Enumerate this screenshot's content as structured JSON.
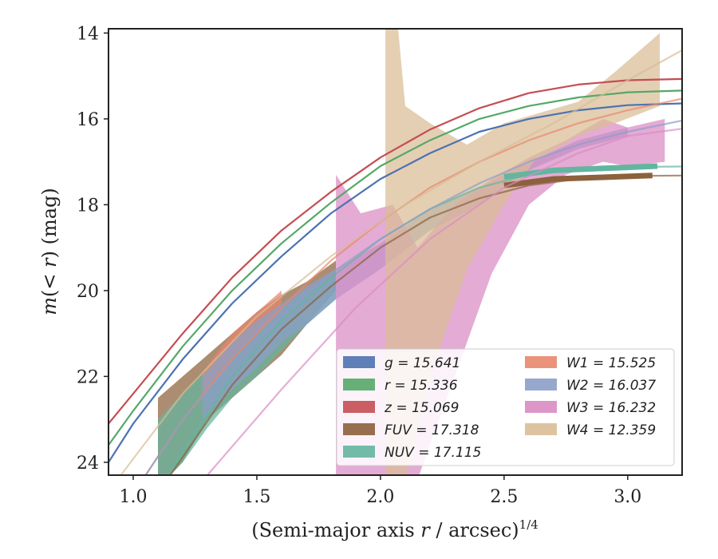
{
  "chart_data": {
    "type": "line",
    "xlabel": "(Semi-major axis r / arcsec)",
    "xlabel_exponent": "1/4",
    "ylabel": "m(< r) (mag)",
    "xlim": [
      0.9,
      3.22
    ],
    "ylim": [
      24.3,
      13.9
    ],
    "y_inverted": true,
    "grid": false,
    "legend_placement": "lower-right",
    "legend_columns": 2,
    "xticks": [
      "1.0",
      "1.5",
      "2.0",
      "2.5",
      "3.0"
    ],
    "yticks": [
      "14",
      "16",
      "18",
      "20",
      "22",
      "24"
    ],
    "series": [
      {
        "name": "g",
        "label": "g = 15.641",
        "color": "#4c72b0",
        "model": [
          [
            0.9,
            24.0
          ],
          [
            1.0,
            23.1
          ],
          [
            1.2,
            21.6
          ],
          [
            1.4,
            20.3
          ],
          [
            1.6,
            19.2
          ],
          [
            1.8,
            18.2
          ],
          [
            2.0,
            17.4
          ],
          [
            2.2,
            16.8
          ],
          [
            2.4,
            16.3
          ],
          [
            2.6,
            16.0
          ],
          [
            2.8,
            15.8
          ],
          [
            3.0,
            15.68
          ],
          [
            3.22,
            15.64
          ]
        ]
      },
      {
        "name": "r",
        "label": "r = 15.336",
        "color": "#55a868",
        "model": [
          [
            0.9,
            23.6
          ],
          [
            1.0,
            22.8
          ],
          [
            1.2,
            21.3
          ],
          [
            1.4,
            20.0
          ],
          [
            1.6,
            18.9
          ],
          [
            1.8,
            17.95
          ],
          [
            2.0,
            17.1
          ],
          [
            2.2,
            16.5
          ],
          [
            2.4,
            16.0
          ],
          [
            2.6,
            15.7
          ],
          [
            2.8,
            15.5
          ],
          [
            3.0,
            15.38
          ],
          [
            3.22,
            15.34
          ]
        ]
      },
      {
        "name": "z",
        "label": "z = 15.069",
        "color": "#c44e52",
        "model": [
          [
            0.9,
            23.1
          ],
          [
            1.0,
            22.4
          ],
          [
            1.2,
            21.0
          ],
          [
            1.4,
            19.7
          ],
          [
            1.6,
            18.6
          ],
          [
            1.8,
            17.7
          ],
          [
            2.0,
            16.9
          ],
          [
            2.2,
            16.25
          ],
          [
            2.4,
            15.75
          ],
          [
            2.6,
            15.4
          ],
          [
            2.8,
            15.2
          ],
          [
            3.0,
            15.1
          ],
          [
            3.22,
            15.07
          ]
        ]
      },
      {
        "name": "FUV",
        "label": "FUV = 17.318",
        "color": "#8c613c",
        "band": [
          [
            1.1,
            22.5,
            24.6
          ],
          [
            1.2,
            22.0,
            24.0
          ],
          [
            1.3,
            21.5,
            23.0
          ],
          [
            1.4,
            21.0,
            22.5
          ],
          [
            1.5,
            20.5,
            22.0
          ],
          [
            1.6,
            20.1,
            21.5
          ],
          [
            1.7,
            19.8,
            20.8
          ],
          [
            1.82,
            19.3,
            20.0
          ]
        ],
        "model": [
          [
            1.15,
            24.3
          ],
          [
            1.4,
            22.2
          ],
          [
            1.6,
            20.9
          ],
          [
            1.8,
            19.9
          ],
          [
            2.0,
            19.0
          ],
          [
            2.2,
            18.3
          ],
          [
            2.4,
            17.85
          ],
          [
            2.6,
            17.55
          ],
          [
            2.8,
            17.4
          ],
          [
            3.0,
            17.33
          ],
          [
            3.22,
            17.32
          ]
        ],
        "data_line": [
          [
            2.5,
            17.55
          ],
          [
            2.7,
            17.4
          ],
          [
            3.1,
            17.32
          ]
        ]
      },
      {
        "name": "NUV",
        "label": "NUV = 17.115",
        "color": "#64b5a0",
        "band": [
          [
            1.1,
            23.0,
            24.6
          ],
          [
            1.2,
            22.4,
            24.0
          ],
          [
            1.3,
            21.8,
            23.2
          ],
          [
            1.4,
            21.3,
            22.5
          ],
          [
            1.5,
            20.8,
            22.0
          ],
          [
            1.6,
            20.4,
            21.4
          ],
          [
            1.7,
            20.0,
            20.8
          ],
          [
            1.82,
            19.6,
            20.2
          ]
        ],
        "model": [
          [
            1.15,
            24.2
          ],
          [
            1.4,
            22.0
          ],
          [
            1.6,
            20.7
          ],
          [
            1.8,
            19.7
          ],
          [
            2.0,
            18.8
          ],
          [
            2.2,
            18.1
          ],
          [
            2.4,
            17.6
          ],
          [
            2.6,
            17.3
          ],
          [
            2.8,
            17.17
          ],
          [
            3.0,
            17.12
          ],
          [
            3.22,
            17.11
          ]
        ],
        "data_line": [
          [
            2.5,
            17.35
          ],
          [
            2.7,
            17.2
          ],
          [
            3.12,
            17.1
          ]
        ]
      },
      {
        "name": "W1",
        "label": "W1 = 15.525",
        "color": "#e8876b",
        "band": [
          [
            1.28,
            21.9,
            22.5
          ],
          [
            1.4,
            21.0,
            21.6
          ],
          [
            1.5,
            20.5,
            21.0
          ],
          [
            1.6,
            20.0,
            20.5
          ]
        ],
        "model": [
          [
            1.05,
            24.3
          ],
          [
            1.2,
            23.0
          ],
          [
            1.4,
            21.6
          ],
          [
            1.6,
            20.4
          ],
          [
            1.8,
            19.3
          ],
          [
            2.0,
            18.4
          ],
          [
            2.2,
            17.6
          ],
          [
            2.4,
            17.0
          ],
          [
            2.6,
            16.5
          ],
          [
            2.8,
            16.1
          ],
          [
            3.0,
            15.8
          ],
          [
            3.22,
            15.53
          ]
        ]
      },
      {
        "name": "W2",
        "label": "W2 = 16.037",
        "color": "#8c9ec9",
        "band": [
          [
            1.28,
            22.0,
            23.0
          ],
          [
            1.4,
            21.2,
            22.3
          ],
          [
            1.5,
            20.7,
            21.8
          ],
          [
            1.6,
            20.3,
            21.2
          ],
          [
            1.7,
            19.9,
            20.8
          ],
          [
            1.82,
            19.5,
            20.2
          ],
          [
            2.0,
            18.9,
            19.5
          ],
          [
            2.2,
            18.1,
            18.6
          ],
          [
            2.4,
            17.6,
            18.0
          ],
          [
            2.6,
            17.0,
            17.2
          ],
          [
            2.8,
            16.5,
            16.7
          ],
          [
            3.0,
            16.2,
            16.4
          ]
        ],
        "model": [
          [
            1.05,
            24.3
          ],
          [
            1.2,
            23.0
          ],
          [
            1.4,
            21.7
          ],
          [
            1.6,
            20.6
          ],
          [
            1.8,
            19.6
          ],
          [
            2.0,
            18.8
          ],
          [
            2.2,
            18.1
          ],
          [
            2.4,
            17.5
          ],
          [
            2.6,
            17.0
          ],
          [
            2.8,
            16.6
          ],
          [
            3.0,
            16.3
          ],
          [
            3.22,
            16.04
          ]
        ]
      },
      {
        "name": "W3",
        "label": "W3 = 16.232",
        "color": "#da8bc3",
        "band": [
          [
            1.82,
            17.3,
            24.4
          ],
          [
            1.92,
            18.2,
            24.4
          ],
          [
            2.05,
            18.0,
            24.4
          ],
          [
            2.15,
            19.0,
            24.4
          ],
          [
            2.3,
            18.0,
            22.0
          ],
          [
            2.45,
            17.4,
            19.6
          ],
          [
            2.6,
            16.9,
            18.0
          ],
          [
            2.75,
            16.5,
            17.3
          ],
          [
            2.9,
            16.0,
            17.0
          ],
          [
            3.0,
            16.2,
            17.1
          ],
          [
            3.15,
            16.0,
            17.0
          ]
        ],
        "model": [
          [
            1.3,
            24.3
          ],
          [
            1.6,
            22.3
          ],
          [
            1.9,
            20.4
          ],
          [
            2.2,
            18.8
          ],
          [
            2.5,
            17.6
          ],
          [
            2.8,
            16.8
          ],
          [
            3.0,
            16.4
          ],
          [
            3.22,
            16.23
          ]
        ]
      },
      {
        "name": "W4",
        "label": "W4 = 12.359",
        "color": "#d9bc96",
        "band": [
          [
            2.02,
            13.8,
            24.4
          ],
          [
            2.07,
            13.8,
            24.4
          ],
          [
            2.1,
            15.7,
            24.4
          ],
          [
            2.2,
            16.1,
            22.0
          ],
          [
            2.35,
            16.6,
            19.5
          ],
          [
            2.5,
            16.1,
            18.0
          ],
          [
            2.62,
            15.9,
            17.0
          ],
          [
            2.8,
            15.6,
            16.4
          ],
          [
            2.95,
            14.9,
            16.1
          ],
          [
            3.13,
            14.0,
            15.7
          ]
        ],
        "model": [
          [
            0.95,
            24.3
          ],
          [
            1.2,
            22.4
          ],
          [
            1.5,
            20.6
          ],
          [
            1.8,
            19.2
          ],
          [
            2.1,
            18.0
          ],
          [
            2.4,
            17.0
          ],
          [
            2.7,
            16.1
          ],
          [
            3.0,
            15.1
          ],
          [
            3.22,
            14.4
          ]
        ]
      }
    ]
  }
}
